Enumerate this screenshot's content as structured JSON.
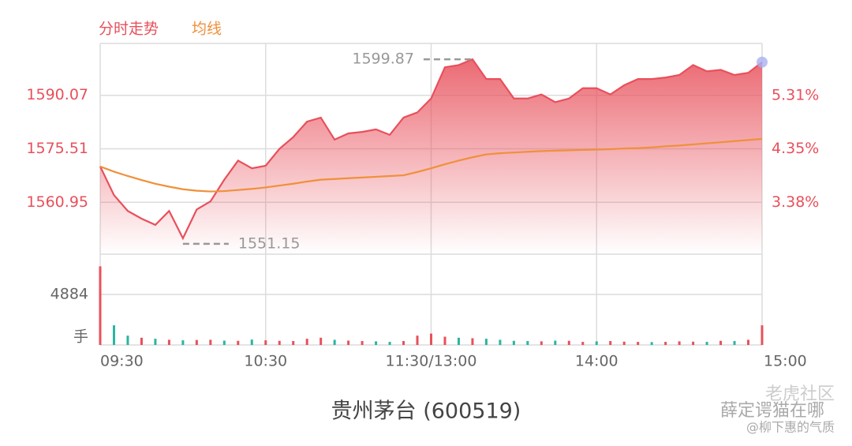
{
  "chart_data": {
    "type": "line",
    "title": "贵州茅台 (600519)",
    "x": [
      0,
      5,
      10,
      15,
      20,
      25,
      30,
      35,
      40,
      45,
      50,
      55,
      60,
      65,
      70,
      75,
      80,
      85,
      90,
      95,
      100,
      105,
      110,
      115,
      120,
      125,
      130,
      135,
      140,
      145,
      150,
      155,
      160,
      165,
      170,
      175,
      180,
      185,
      190,
      195,
      200,
      205,
      210,
      215,
      220,
      225,
      230,
      235,
      240
    ],
    "xlim": [
      0,
      240
    ],
    "xticks": [
      {
        "value": 0,
        "label": "09:30"
      },
      {
        "value": 60,
        "label": "10:30"
      },
      {
        "value": 120,
        "label": "11:30/13:00"
      },
      {
        "value": 180,
        "label": "14:00"
      },
      {
        "value": 240,
        "label": "15:00"
      }
    ],
    "series": [
      {
        "name": "分时走势",
        "color": "#e8505b",
        "values": [
          1570.7,
          1562.9,
          1558.6,
          1556.5,
          1554.8,
          1558.6,
          1551.15,
          1559.0,
          1561.2,
          1567.1,
          1572.3,
          1570.2,
          1570.9,
          1575.5,
          1578.7,
          1582.9,
          1584.0,
          1578.0,
          1579.7,
          1580.1,
          1580.8,
          1579.3,
          1584.0,
          1585.4,
          1589.2,
          1597.7,
          1598.3,
          1599.87,
          1594.5,
          1594.5,
          1589.2,
          1589.2,
          1590.3,
          1588.2,
          1589.2,
          1592.0,
          1592.0,
          1590.3,
          1592.8,
          1594.5,
          1594.5,
          1594.9,
          1595.6,
          1598.3,
          1596.6,
          1597.0,
          1595.6,
          1596.2,
          1599.1
        ]
      },
      {
        "name": "均线",
        "color": "#f0903a",
        "values": [
          1570.7,
          1569.3,
          1568.1,
          1567.0,
          1566.0,
          1565.2,
          1564.5,
          1564.1,
          1563.9,
          1564.0,
          1564.3,
          1564.6,
          1565.0,
          1565.5,
          1566.0,
          1566.6,
          1567.1,
          1567.3,
          1567.5,
          1567.7,
          1567.9,
          1568.1,
          1568.3,
          1569.2,
          1570.2,
          1571.3,
          1572.3,
          1573.2,
          1574.0,
          1574.3,
          1574.5,
          1574.7,
          1574.9,
          1575.0,
          1575.1,
          1575.2,
          1575.3,
          1575.4,
          1575.6,
          1575.7,
          1575.9,
          1576.2,
          1576.4,
          1576.7,
          1577.0,
          1577.3,
          1577.6,
          1577.9,
          1578.2
        ]
      }
    ],
    "ylim": [
      1546.83,
      1604.19
    ],
    "yticks": [
      1560.95,
      1575.51,
      1590.07
    ],
    "y2lim": [
      2.45,
      6.25
    ],
    "y2ticks": [
      {
        "value": 3.38,
        "label": "3.38%"
      },
      {
        "value": 4.35,
        "label": "4.35%"
      },
      {
        "value": 5.31,
        "label": "5.31%"
      }
    ],
    "grid": true,
    "annotations": [
      {
        "x": 135,
        "value": 1599.87
      },
      {
        "x": 30,
        "value": 1551.15
      }
    ],
    "volume": {
      "unit": "手",
      "ylim": [
        0,
        7631
      ],
      "yticks": [
        4884
      ],
      "values": [
        7600,
        1900,
        900,
        700,
        600,
        500,
        450,
        480,
        500,
        420,
        400,
        520,
        450,
        400,
        380,
        600,
        700,
        500,
        420,
        380,
        350,
        300,
        380,
        900,
        1100,
        800,
        700,
        650,
        600,
        500,
        400,
        380,
        350,
        420,
        400,
        300,
        350,
        380,
        320,
        300,
        280,
        300,
        350,
        320,
        300,
        400,
        380,
        500,
        1900
      ],
      "colors": [
        "#e8505b",
        "#2bb5a0",
        "#2bb5a0",
        "#e8505b",
        "#2bb5a0",
        "#e8505b",
        "#2bb5a0",
        "#e8505b",
        "#e8505b",
        "#2bb5a0",
        "#e8505b",
        "#2bb5a0",
        "#e8505b",
        "#e8505b",
        "#e8505b",
        "#e8505b",
        "#e8505b",
        "#2bb5a0",
        "#e8505b",
        "#e8505b",
        "#2bb5a0",
        "#2bb5a0",
        "#e8505b",
        "#e8505b",
        "#e8505b",
        "#e8505b",
        "#2bb5a0",
        "#e8505b",
        "#2bb5a0",
        "#2bb5a0",
        "#2bb5a0",
        "#2bb5a0",
        "#e8505b",
        "#2bb5a0",
        "#e8505b",
        "#e8505b",
        "#2bb5a0",
        "#e8505b",
        "#e8505b",
        "#e8505b",
        "#2bb5a0",
        "#e8505b",
        "#e8505b",
        "#e8505b",
        "#2bb5a0",
        "#e8505b",
        "#2bb5a0",
        "#e8505b",
        "#e8505b"
      ]
    }
  },
  "watermark": [
    "老虎社区",
    "薛定谔猫在哪",
    "@柳下惠的气质"
  ]
}
